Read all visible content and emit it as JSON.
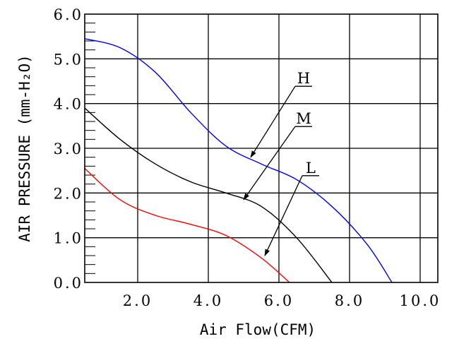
{
  "chart_data": {
    "type": "line",
    "xlabel": "Air Flow(CFM)",
    "ylabel": "AIR PRESSURE (mm-H₂O)",
    "xlim": [
      0.5,
      10.5
    ],
    "ylim": [
      0,
      6
    ],
    "x_ticks": [
      "2.0",
      "4.0",
      "6.0",
      "8.0",
      "10.0"
    ],
    "y_ticks": [
      "0.0",
      "1.0",
      "2.0",
      "3.0",
      "4.0",
      "5.0",
      "6.0"
    ],
    "grid": true,
    "series": [
      {
        "name": "H",
        "color": "#0000ff",
        "x": [
          0.5,
          1.5,
          2.5,
          3.5,
          4.5,
          5.5,
          6.5,
          7.5,
          8.5,
          9.2
        ],
        "y": [
          5.45,
          5.25,
          4.7,
          3.8,
          3.05,
          2.65,
          2.3,
          1.7,
          0.85,
          0.0
        ]
      },
      {
        "name": "M",
        "color": "#000000",
        "x": [
          0.5,
          1.5,
          2.5,
          3.5,
          4.5,
          5.5,
          6.5,
          7.5
        ],
        "y": [
          3.9,
          3.2,
          2.65,
          2.25,
          2.0,
          1.7,
          1.0,
          0.0
        ]
      },
      {
        "name": "L",
        "color": "#ff0000",
        "x": [
          0.5,
          1.5,
          2.5,
          3.5,
          4.5,
          5.5,
          6.3
        ],
        "y": [
          2.55,
          1.85,
          1.5,
          1.3,
          1.05,
          0.55,
          0.0
        ]
      }
    ],
    "annotations": [
      {
        "label": "H",
        "text_at": [
          6.7,
          4.45
        ],
        "points_to": [
          5.2,
          2.8
        ]
      },
      {
        "label": "M",
        "text_at": [
          6.7,
          3.55
        ],
        "points_to": [
          5.0,
          1.85
        ]
      },
      {
        "label": "L",
        "text_at": [
          6.9,
          2.45
        ],
        "points_to": [
          5.6,
          0.6
        ]
      }
    ]
  }
}
